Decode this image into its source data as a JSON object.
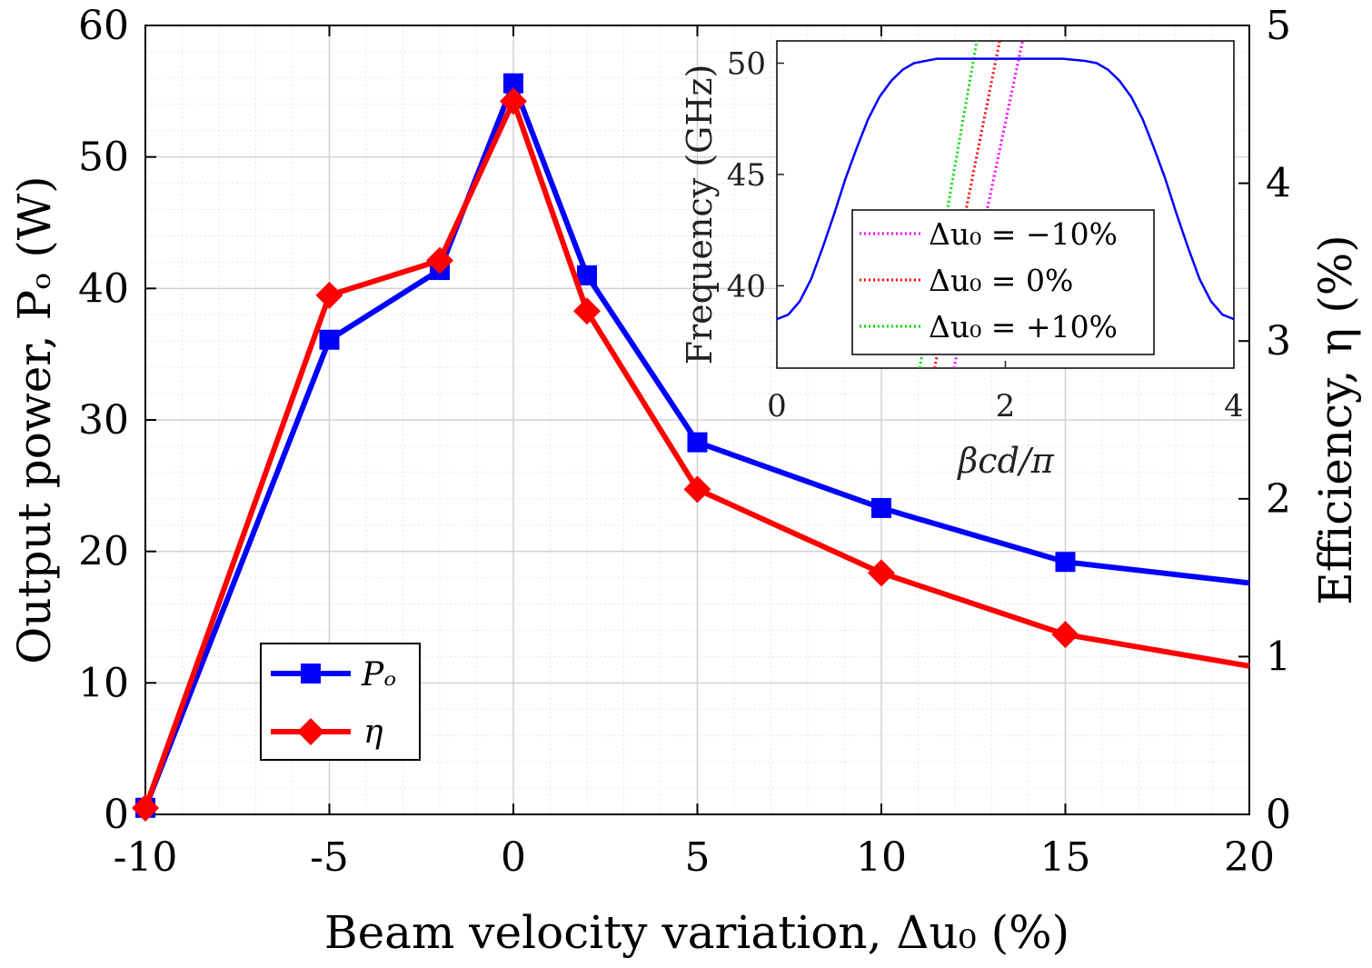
{
  "chart_data": [
    {
      "type": "line",
      "xlabel": "Beam velocity variation, Δu₀ (%)",
      "ylabel_left": "Output power, Pₒ (W)",
      "ylabel_right": "Efficiency, η (%)",
      "x": [
        -10,
        -5,
        -2,
        0,
        2,
        5,
        10,
        15,
        20
      ],
      "xlim": [
        -10,
        20
      ],
      "xticks": [
        "-10",
        "-5",
        "0",
        "5",
        "10",
        "15",
        "20"
      ],
      "ylim_left": [
        0,
        60
      ],
      "yticks_left": [
        "0",
        "10",
        "20",
        "30",
        "40",
        "50",
        "60"
      ],
      "ylim_right": [
        0,
        5
      ],
      "yticks_right": [
        "0",
        "1",
        "2",
        "3",
        "4",
        "5"
      ],
      "grid": true,
      "legend_position": "lower-left",
      "series": [
        {
          "name": "Pₒ",
          "axis": "left",
          "color": "#0000ff",
          "marker": "square",
          "values": [
            0.5,
            36.1,
            41.4,
            55.6,
            41.0,
            28.3,
            23.3,
            19.2,
            17.6
          ]
        },
        {
          "name": "η",
          "axis": "right",
          "color": "#ff0000",
          "marker": "diamond",
          "values": [
            0.04,
            3.29,
            3.51,
            4.52,
            3.19,
            2.06,
            1.53,
            1.14,
            0.94
          ]
        }
      ]
    },
    {
      "type": "line",
      "xlabel": "βcd/π",
      "ylabel": "Frequency (GHz)",
      "xlim": [
        0,
        4
      ],
      "xticks": [
        "0",
        "2",
        "4"
      ],
      "ylim": [
        36.3,
        51
      ],
      "yticks": [
        "40",
        "45",
        "50"
      ],
      "legend_position": "bottom-right",
      "dispersion_curve": {
        "color": "#0000ff",
        "x": [
          0.0,
          0.1,
          0.2,
          0.3,
          0.4,
          0.5,
          0.6,
          0.7,
          0.8,
          0.9,
          1.0,
          1.1,
          1.2,
          1.3,
          1.4,
          1.5,
          2.0,
          2.5,
          2.7,
          2.8,
          2.9,
          3.0,
          3.1,
          3.2,
          3.3,
          3.4,
          3.5,
          3.6,
          3.7,
          3.8,
          3.9,
          4.0
        ],
        "y": [
          38.5,
          38.7,
          39.3,
          40.3,
          41.7,
          43.2,
          44.8,
          46.2,
          47.5,
          48.5,
          49.2,
          49.7,
          50.0,
          50.1,
          50.2,
          50.2,
          50.2,
          50.2,
          50.1,
          50.0,
          49.7,
          49.2,
          48.5,
          47.5,
          46.2,
          44.8,
          43.2,
          41.7,
          40.3,
          39.3,
          38.7,
          38.5
        ]
      },
      "beam_lines": [
        {
          "name": "Δu₀ = −10%",
          "color": "#ff00ff",
          "x": [
            1.55,
            2.15
          ],
          "y": [
            36.3,
            51
          ]
        },
        {
          "name": "Δu₀ = 0%",
          "color": "#ff0000",
          "x": [
            1.38,
            1.95
          ],
          "y": [
            36.3,
            51
          ]
        },
        {
          "name": "Δu₀ = +10%",
          "color": "#00dd00",
          "x": [
            1.25,
            1.75
          ],
          "y": [
            36.3,
            51
          ]
        }
      ]
    }
  ]
}
